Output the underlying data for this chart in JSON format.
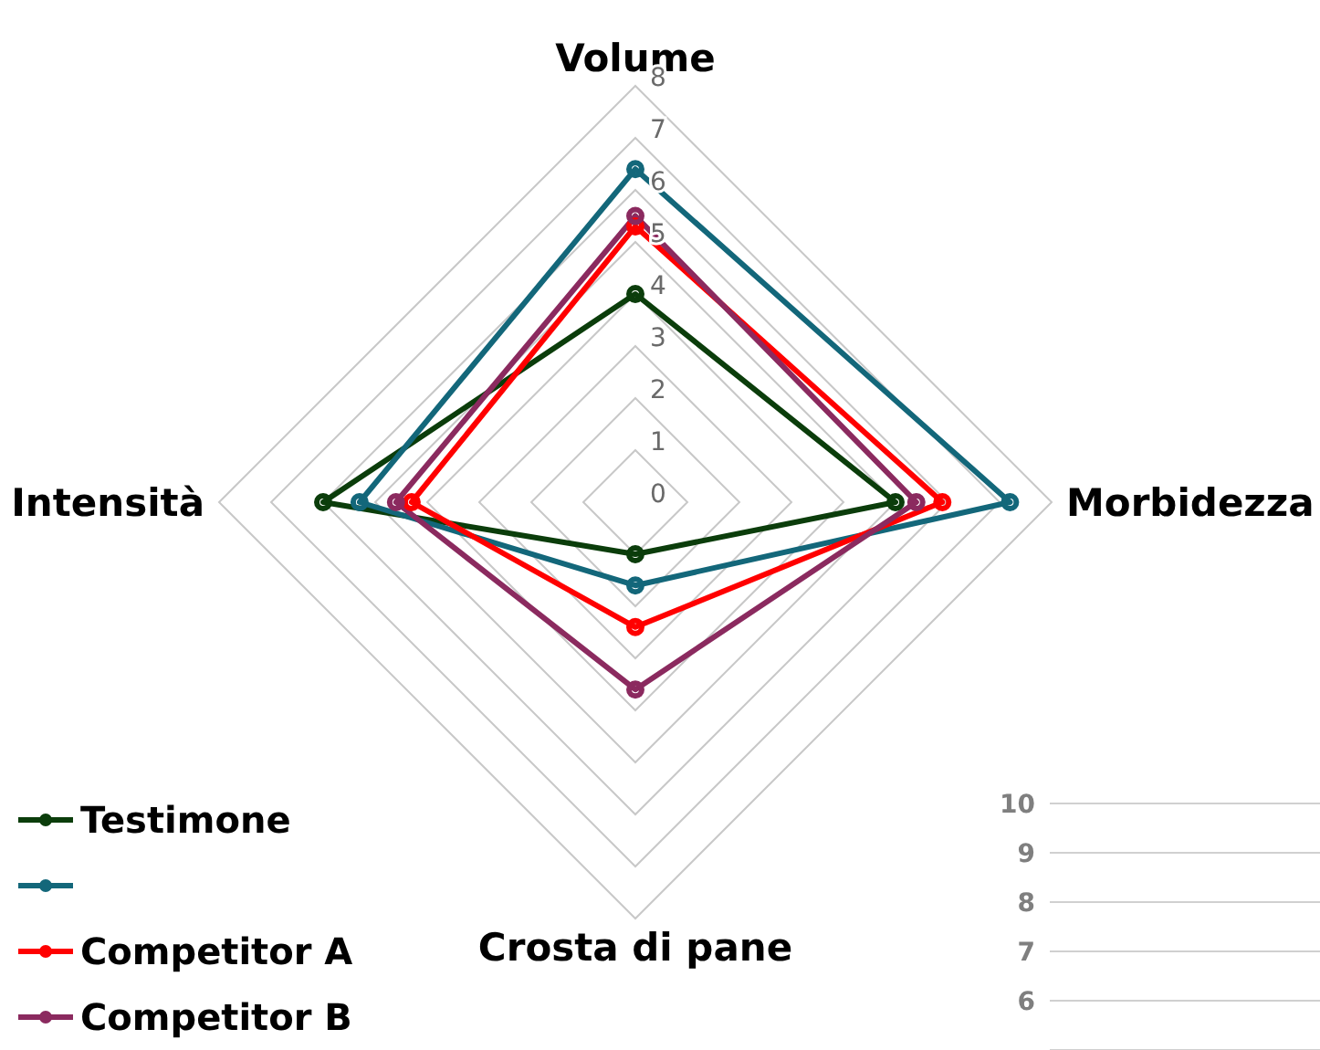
{
  "chart_data": [
    {
      "type": "radar",
      "categories": [
        "Volume",
        "Morbidezza",
        "Crosta di pane",
        "Intensità"
      ],
      "ylim": [
        0,
        8
      ],
      "yticks": [
        0,
        1,
        2,
        3,
        4,
        5,
        6,
        7,
        8
      ],
      "grid": true,
      "legend": "bottom left",
      "marker": "circle",
      "series": [
        {
          "name": "Testimone",
          "color": "#0b3d0b",
          "values": [
            4,
            5,
            1,
            6
          ]
        },
        {
          "color": "#13677a",
          "values": [
            6.4,
            7.2,
            1.6,
            5.3
          ]
        },
        {
          "name": "Competitor A",
          "color": "#ff0000",
          "values": [
            5.3,
            5.9,
            2.4,
            4.3
          ]
        },
        {
          "name": "Competitor B",
          "color": "#8b2a5f",
          "values": [
            5.5,
            5.4,
            3.6,
            4.6
          ]
        }
      ]
    },
    {
      "type": "line",
      "categories": [
        null
      ],
      "ylim": [
        5,
        10
      ],
      "yticks": [
        6,
        7,
        8,
        9,
        10
      ],
      "grid": "y"
    }
  ]
}
